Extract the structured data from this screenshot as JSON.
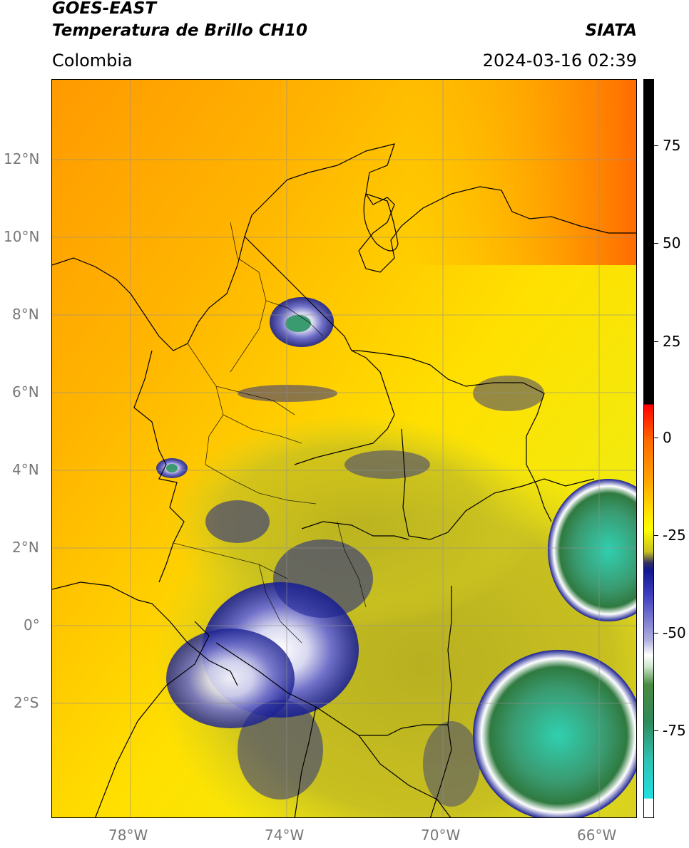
{
  "header": {
    "satellite": "GOES-EAST",
    "product": "Temperatura de Brillo CH10",
    "region": "Colombia",
    "org": "SIATA",
    "datetime": "2024-03-16 02:39"
  },
  "axes": {
    "lat_labels": [
      "12°N",
      "10°N",
      "8°N",
      "6°N",
      "4°N",
      "2°N",
      "0°",
      "2°S"
    ],
    "lon_labels": [
      "78°W",
      "74°W",
      "70°W",
      "66°W"
    ]
  },
  "colorbar": {
    "labels": [
      "75",
      "50",
      "25",
      "0",
      "-25",
      "-50",
      "-75"
    ],
    "colors": {
      "hot": "#000000",
      "red": "#ff0000",
      "orange": "#ffa000",
      "yellow": "#ffff00",
      "olive": "#c8c020",
      "navy": "#101890",
      "white": "#ffffff",
      "green": "#3f8a4a",
      "teal": "#20e0e0"
    }
  }
}
